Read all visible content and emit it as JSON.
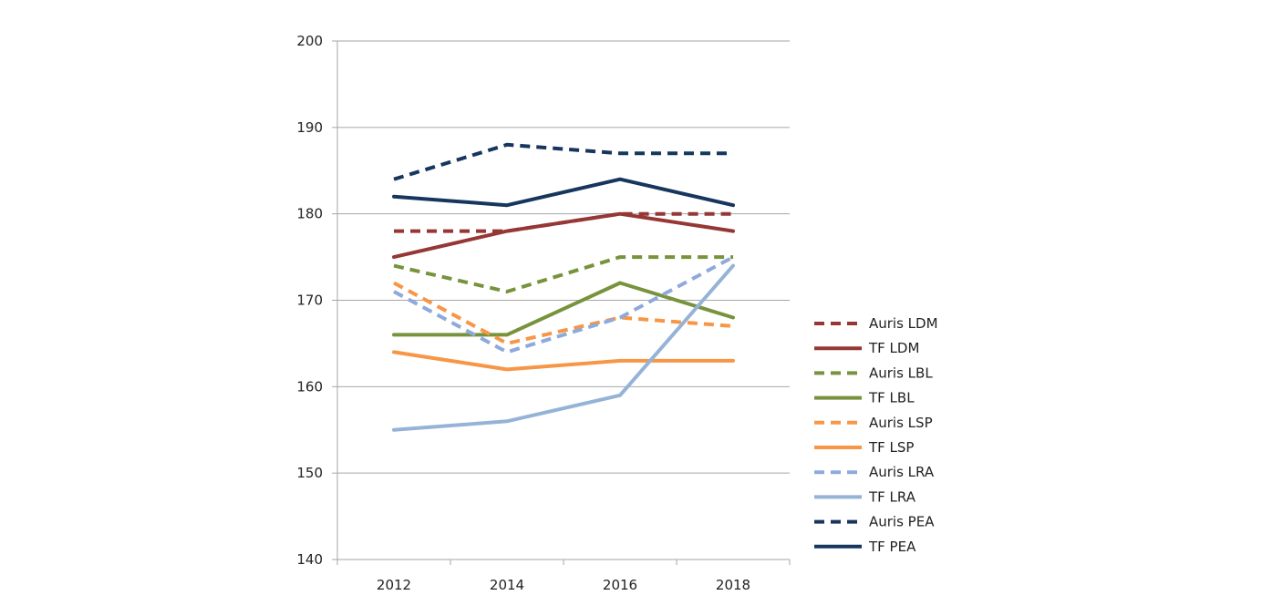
{
  "chart_data": {
    "type": "line",
    "title": "",
    "xlabel": "",
    "ylabel": "",
    "x": [
      "2012",
      "2014",
      "2016",
      "2018"
    ],
    "ylim": [
      140,
      200
    ],
    "yticks": [
      140,
      150,
      160,
      170,
      180,
      190,
      200
    ],
    "grid": "horizontal",
    "legend_position": "right",
    "series": [
      {
        "name": "Auris LDM",
        "color": "#953735",
        "dashed": true,
        "values": [
          178,
          178,
          180,
          180
        ]
      },
      {
        "name": "TF LDM",
        "color": "#953735",
        "dashed": false,
        "values": [
          175,
          178,
          180,
          178
        ]
      },
      {
        "name": "Auris LBL",
        "color": "#77933C",
        "dashed": true,
        "values": [
          174,
          171,
          175,
          175
        ]
      },
      {
        "name": "TF LBL",
        "color": "#77933C",
        "dashed": false,
        "values": [
          166,
          166,
          172,
          168
        ]
      },
      {
        "name": "Auris LSP",
        "color": "#F79646",
        "dashed": true,
        "values": [
          172,
          165,
          168,
          167
        ]
      },
      {
        "name": "TF LSP",
        "color": "#F79646",
        "dashed": false,
        "values": [
          164,
          162,
          163,
          163
        ]
      },
      {
        "name": "Auris LRA",
        "color": "#8EA9DB",
        "dashed": true,
        "values": [
          171,
          164,
          168,
          175
        ]
      },
      {
        "name": "TF LRA",
        "color": "#95B3D7",
        "dashed": false,
        "values": [
          155,
          156,
          159,
          174
        ]
      },
      {
        "name": "Auris PEA",
        "color": "#17365D",
        "dashed": true,
        "values": [
          184,
          188,
          187,
          187
        ]
      },
      {
        "name": "TF PEA",
        "color": "#17365D",
        "dashed": false,
        "values": [
          182,
          181,
          184,
          181
        ]
      }
    ]
  }
}
